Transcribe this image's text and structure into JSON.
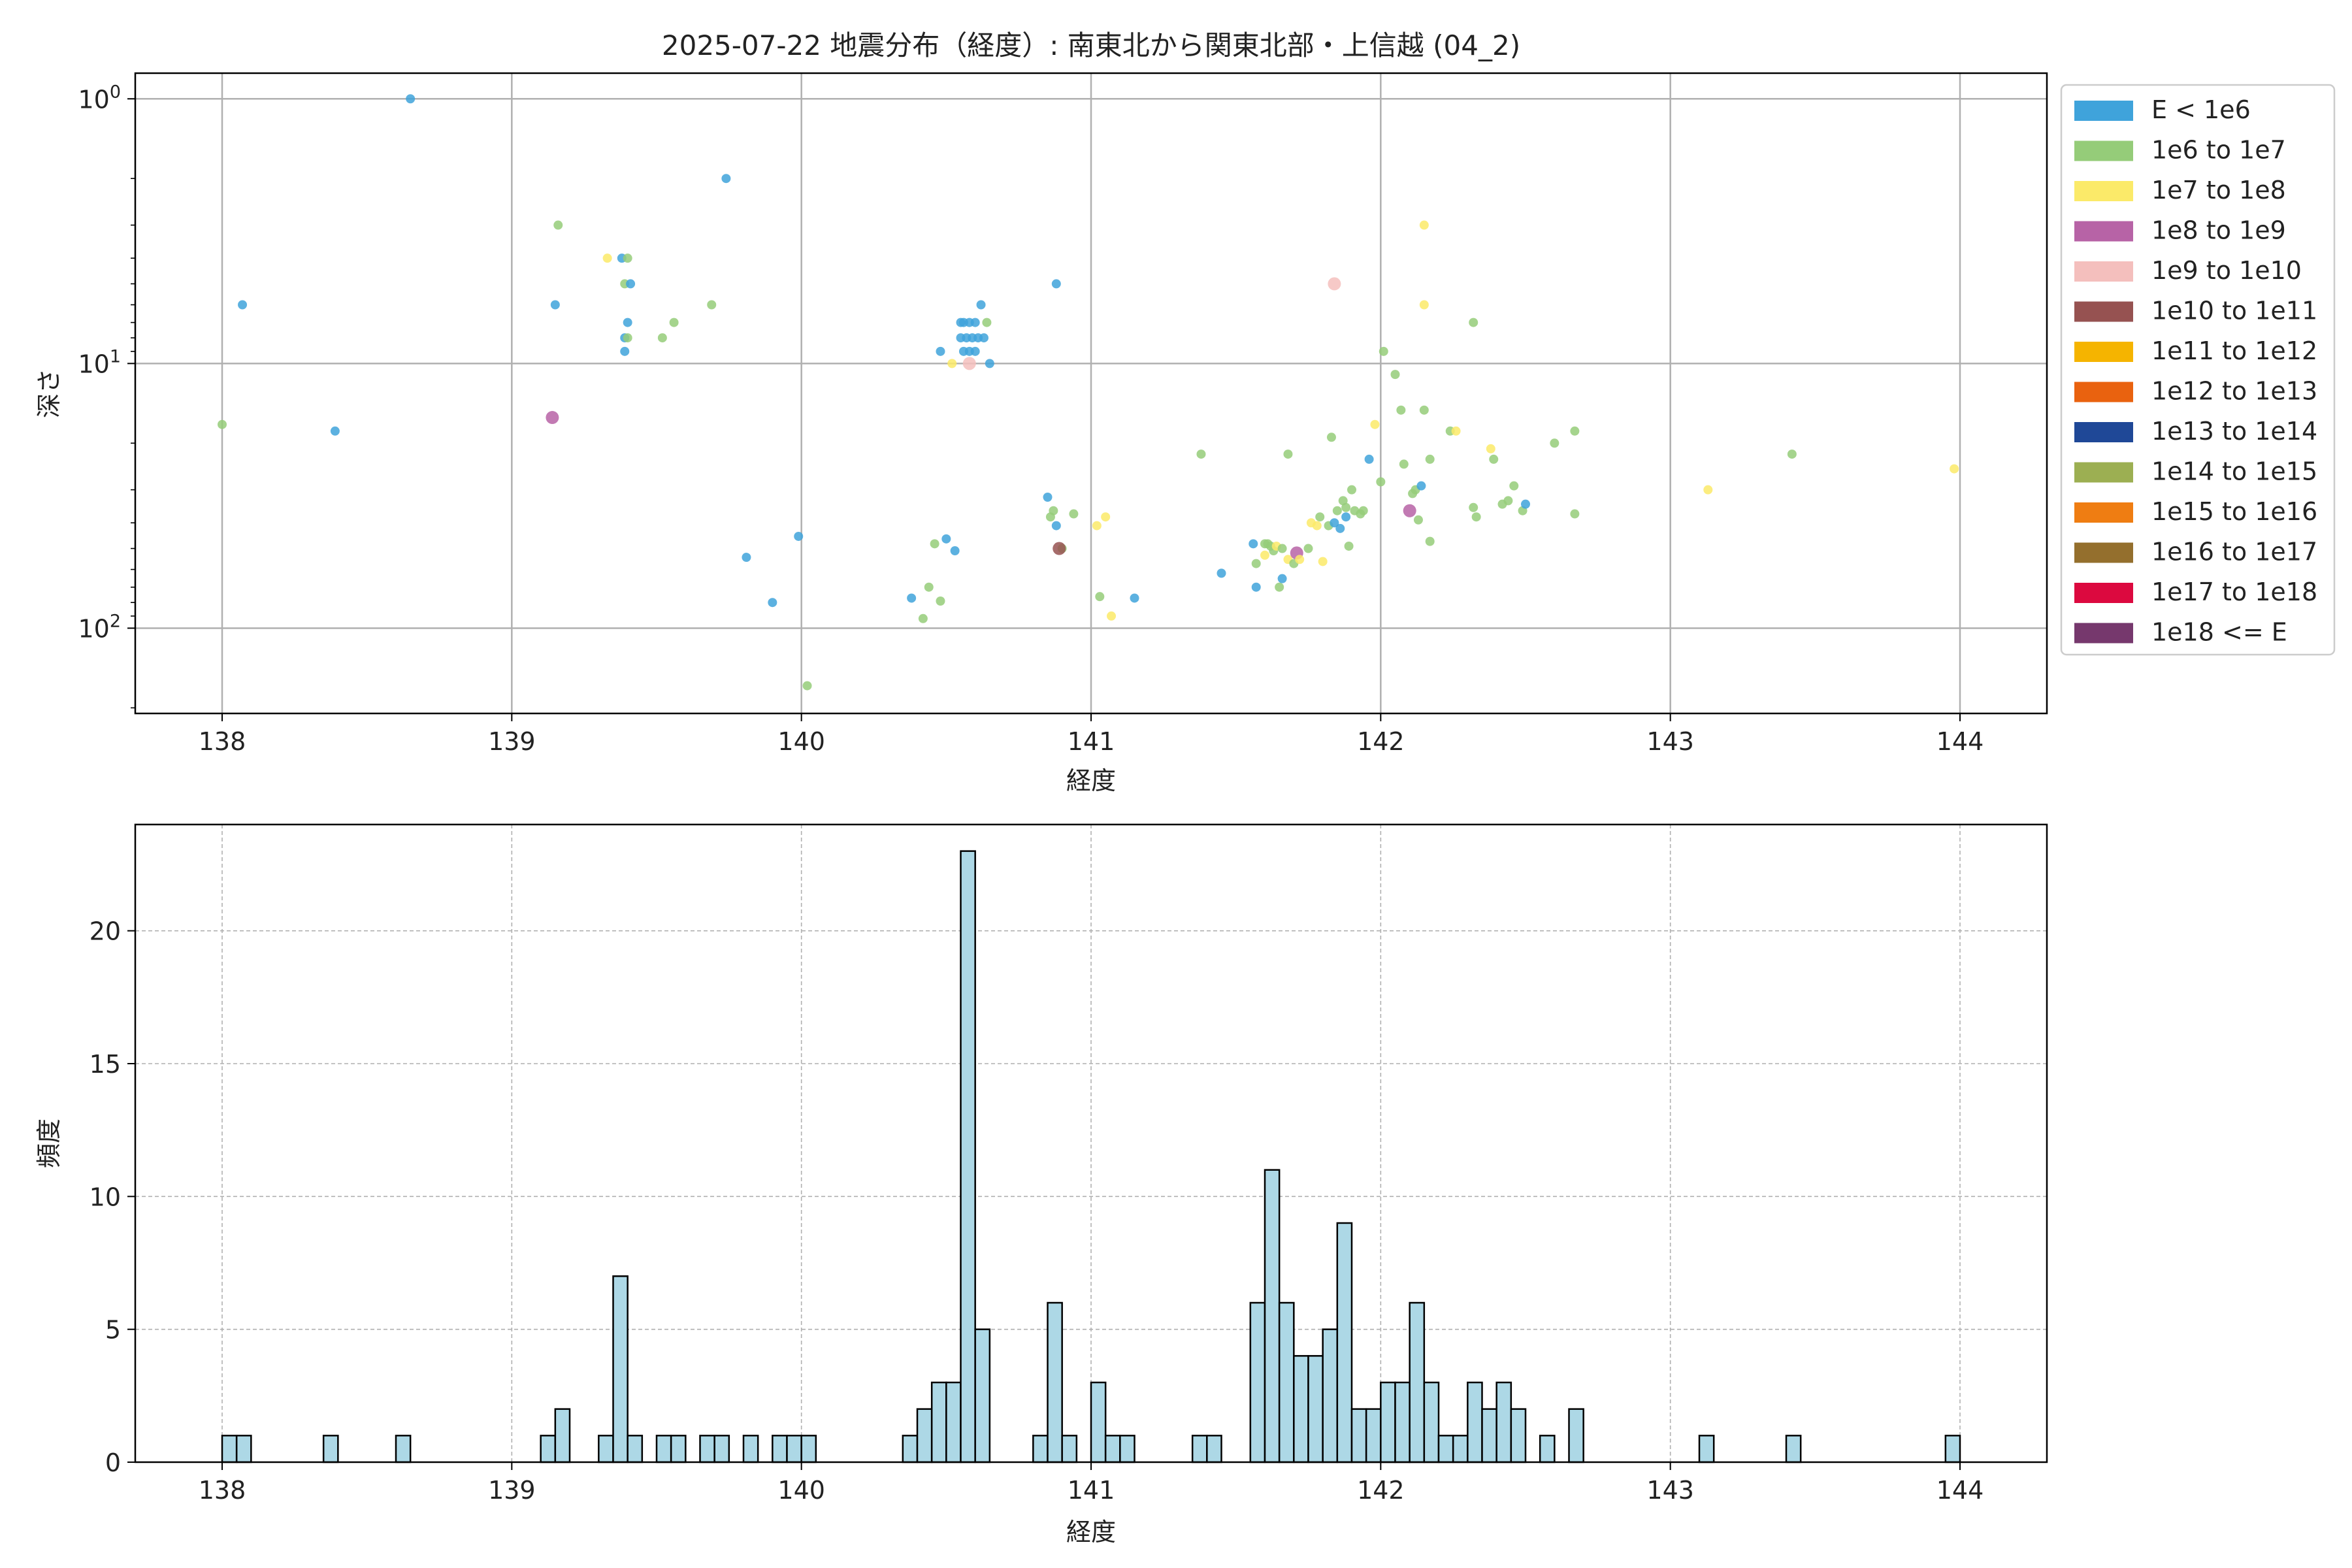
{
  "title": "2025-07-22 地震分布（経度）: 南東北から関東北部・上信越 (04_2)",
  "chart_data": [
    {
      "type": "scatter",
      "xlabel": "経度",
      "ylabel": "深さ",
      "xlim": [
        137.7,
        144.3
      ],
      "ylim": [
        210,
        0.8
      ],
      "yscale": "log",
      "y_inverted": true,
      "xticks": [
        "138",
        "139",
        "140",
        "141",
        "142",
        "143",
        "144"
      ],
      "xtick_values": [
        138,
        139,
        140,
        141,
        142,
        143,
        144
      ],
      "yticks": [
        {
          "base": "10",
          "exp": "0",
          "value": 1
        },
        {
          "base": "10",
          "exp": "1",
          "value": 10
        },
        {
          "base": "10",
          "exp": "2",
          "value": 100
        }
      ],
      "grid": true,
      "legend_position": "outside-right",
      "legend": [
        {
          "label": "E < 1e6",
          "color": "#3fa3db"
        },
        {
          "label": "1e6 to 1e7",
          "color": "#95cc79"
        },
        {
          "label": "1e7 to 1e8",
          "color": "#fbea69"
        },
        {
          "label": "1e8 to 1e9",
          "color": "#b763a6"
        },
        {
          "label": "1e9 to 1e10",
          "color": "#f4bfbd"
        },
        {
          "label": "1e10 to 1e11",
          "color": "#965251"
        },
        {
          "label": "1e11 to 1e12",
          "color": "#f5b400"
        },
        {
          "label": "1e12 to 1e13",
          "color": "#e9620f"
        },
        {
          "label": "1e13 to 1e14",
          "color": "#1f4897"
        },
        {
          "label": "1e14 to 1e15",
          "color": "#9caf52"
        },
        {
          "label": "1e15 to 1e16",
          "color": "#ef7d12"
        },
        {
          "label": "1e16 to 1e17",
          "color": "#946f2d"
        },
        {
          "label": "1e17 to 1e18",
          "color": "#dc093f"
        },
        {
          "label": "1e18 <= E",
          "color": "#76386d"
        }
      ],
      "points": [
        {
          "x": 138.65,
          "y": 1.0,
          "c": 0
        },
        {
          "x": 138.07,
          "y": 6.0,
          "c": 0
        },
        {
          "x": 138.0,
          "y": 17.0,
          "c": 1
        },
        {
          "x": 138.39,
          "y": 18.0,
          "c": 0
        },
        {
          "x": 139.16,
          "y": 3.0,
          "c": 1
        },
        {
          "x": 139.15,
          "y": 6.0,
          "c": 0
        },
        {
          "x": 139.33,
          "y": 4.0,
          "c": 2
        },
        {
          "x": 139.38,
          "y": 4.0,
          "c": 0
        },
        {
          "x": 139.4,
          "y": 4.0,
          "c": 1
        },
        {
          "x": 139.39,
          "y": 5.0,
          "c": 1
        },
        {
          "x": 139.41,
          "y": 5.0,
          "c": 0
        },
        {
          "x": 139.4,
          "y": 7.0,
          "c": 0
        },
        {
          "x": 139.39,
          "y": 8.0,
          "c": 0
        },
        {
          "x": 139.4,
          "y": 8.0,
          "c": 1
        },
        {
          "x": 139.39,
          "y": 9.0,
          "c": 0
        },
        {
          "x": 139.14,
          "y": 16.0,
          "c": 3
        },
        {
          "x": 139.52,
          "y": 8.0,
          "c": 1
        },
        {
          "x": 139.56,
          "y": 7.0,
          "c": 1
        },
        {
          "x": 139.69,
          "y": 6.0,
          "c": 1
        },
        {
          "x": 139.74,
          "y": 2.0,
          "c": 0
        },
        {
          "x": 139.81,
          "y": 54.0,
          "c": 0
        },
        {
          "x": 139.9,
          "y": 80.0,
          "c": 0
        },
        {
          "x": 139.99,
          "y": 45.0,
          "c": 0
        },
        {
          "x": 140.02,
          "y": 165.0,
          "c": 1
        },
        {
          "x": 140.38,
          "y": 77.0,
          "c": 0
        },
        {
          "x": 140.42,
          "y": 92.0,
          "c": 1
        },
        {
          "x": 140.44,
          "y": 70.0,
          "c": 1
        },
        {
          "x": 140.46,
          "y": 48.0,
          "c": 1
        },
        {
          "x": 140.48,
          "y": 79.0,
          "c": 1
        },
        {
          "x": 140.5,
          "y": 46.0,
          "c": 0
        },
        {
          "x": 140.53,
          "y": 51.0,
          "c": 0
        },
        {
          "x": 140.48,
          "y": 9.0,
          "c": 0
        },
        {
          "x": 140.52,
          "y": 10.0,
          "c": 2
        },
        {
          "x": 140.55,
          "y": 7.0,
          "c": 0
        },
        {
          "x": 140.56,
          "y": 7.0,
          "c": 0
        },
        {
          "x": 140.58,
          "y": 7.0,
          "c": 0
        },
        {
          "x": 140.6,
          "y": 7.0,
          "c": 0
        },
        {
          "x": 140.55,
          "y": 8.0,
          "c": 0
        },
        {
          "x": 140.57,
          "y": 8.0,
          "c": 0
        },
        {
          "x": 140.59,
          "y": 8.0,
          "c": 0
        },
        {
          "x": 140.61,
          "y": 8.0,
          "c": 0
        },
        {
          "x": 140.63,
          "y": 8.0,
          "c": 0
        },
        {
          "x": 140.56,
          "y": 9.0,
          "c": 0
        },
        {
          "x": 140.58,
          "y": 9.0,
          "c": 0
        },
        {
          "x": 140.6,
          "y": 9.0,
          "c": 0
        },
        {
          "x": 140.58,
          "y": 10.0,
          "c": 4
        },
        {
          "x": 140.62,
          "y": 6.0,
          "c": 0
        },
        {
          "x": 140.64,
          "y": 7.0,
          "c": 1
        },
        {
          "x": 140.65,
          "y": 10.0,
          "c": 0
        },
        {
          "x": 140.85,
          "y": 32.0,
          "c": 0
        },
        {
          "x": 140.86,
          "y": 38.0,
          "c": 1
        },
        {
          "x": 140.87,
          "y": 36.0,
          "c": 1
        },
        {
          "x": 140.88,
          "y": 41.0,
          "c": 0
        },
        {
          "x": 140.9,
          "y": 50.0,
          "c": 1
        },
        {
          "x": 140.89,
          "y": 50.0,
          "c": 5
        },
        {
          "x": 140.94,
          "y": 37.0,
          "c": 1
        },
        {
          "x": 140.88,
          "y": 5.0,
          "c": 0
        },
        {
          "x": 141.02,
          "y": 41.0,
          "c": 2
        },
        {
          "x": 141.05,
          "y": 38.0,
          "c": 2
        },
        {
          "x": 141.03,
          "y": 76.0,
          "c": 1
        },
        {
          "x": 141.07,
          "y": 90.0,
          "c": 2
        },
        {
          "x": 141.15,
          "y": 77.0,
          "c": 0
        },
        {
          "x": 141.38,
          "y": 22.0,
          "c": 1
        },
        {
          "x": 141.45,
          "y": 62.0,
          "c": 0
        },
        {
          "x": 141.56,
          "y": 48.0,
          "c": 0
        },
        {
          "x": 141.57,
          "y": 57.0,
          "c": 1
        },
        {
          "x": 141.57,
          "y": 70.0,
          "c": 0
        },
        {
          "x": 141.6,
          "y": 48.0,
          "c": 1
        },
        {
          "x": 141.61,
          "y": 48.0,
          "c": 1
        },
        {
          "x": 141.62,
          "y": 49.0,
          "c": 1
        },
        {
          "x": 141.63,
          "y": 51.0,
          "c": 1
        },
        {
          "x": 141.6,
          "y": 53.0,
          "c": 2
        },
        {
          "x": 141.64,
          "y": 49.0,
          "c": 2
        },
        {
          "x": 141.66,
          "y": 50.0,
          "c": 1
        },
        {
          "x": 141.65,
          "y": 70.0,
          "c": 1
        },
        {
          "x": 141.66,
          "y": 65.0,
          "c": 0
        },
        {
          "x": 141.68,
          "y": 22.0,
          "c": 1
        },
        {
          "x": 141.68,
          "y": 55.0,
          "c": 2
        },
        {
          "x": 141.7,
          "y": 57.0,
          "c": 1
        },
        {
          "x": 141.71,
          "y": 52.0,
          "c": 3
        },
        {
          "x": 141.72,
          "y": 55.0,
          "c": 2
        },
        {
          "x": 141.75,
          "y": 50.0,
          "c": 1
        },
        {
          "x": 141.76,
          "y": 40.0,
          "c": 2
        },
        {
          "x": 141.78,
          "y": 41.0,
          "c": 2
        },
        {
          "x": 141.79,
          "y": 38.0,
          "c": 1
        },
        {
          "x": 141.8,
          "y": 56.0,
          "c": 2
        },
        {
          "x": 141.82,
          "y": 41.0,
          "c": 1
        },
        {
          "x": 141.83,
          "y": 19.0,
          "c": 1
        },
        {
          "x": 141.84,
          "y": 40.0,
          "c": 0
        },
        {
          "x": 141.84,
          "y": 5.0,
          "c": 4
        },
        {
          "x": 141.85,
          "y": 36.0,
          "c": 1
        },
        {
          "x": 141.86,
          "y": 42.0,
          "c": 0
        },
        {
          "x": 141.87,
          "y": 33.0,
          "c": 1
        },
        {
          "x": 141.88,
          "y": 38.0,
          "c": 0
        },
        {
          "x": 141.88,
          "y": 35.0,
          "c": 1
        },
        {
          "x": 141.89,
          "y": 49.0,
          "c": 1
        },
        {
          "x": 141.9,
          "y": 30.0,
          "c": 1
        },
        {
          "x": 141.91,
          "y": 36.0,
          "c": 1
        },
        {
          "x": 141.93,
          "y": 37.0,
          "c": 1
        },
        {
          "x": 141.94,
          "y": 36.0,
          "c": 1
        },
        {
          "x": 141.96,
          "y": 23.0,
          "c": 0
        },
        {
          "x": 141.98,
          "y": 17.0,
          "c": 2
        },
        {
          "x": 142.0,
          "y": 28.0,
          "c": 1
        },
        {
          "x": 142.01,
          "y": 9.0,
          "c": 1
        },
        {
          "x": 142.05,
          "y": 11.0,
          "c": 1
        },
        {
          "x": 142.07,
          "y": 15.0,
          "c": 1
        },
        {
          "x": 142.08,
          "y": 24.0,
          "c": 1
        },
        {
          "x": 142.1,
          "y": 36.0,
          "c": 3
        },
        {
          "x": 142.11,
          "y": 31.0,
          "c": 1
        },
        {
          "x": 142.12,
          "y": 30.0,
          "c": 1
        },
        {
          "x": 142.13,
          "y": 39.0,
          "c": 1
        },
        {
          "x": 142.14,
          "y": 29.0,
          "c": 0
        },
        {
          "x": 142.15,
          "y": 3.0,
          "c": 2
        },
        {
          "x": 142.15,
          "y": 6.0,
          "c": 2
        },
        {
          "x": 142.15,
          "y": 15.0,
          "c": 1
        },
        {
          "x": 142.17,
          "y": 23.0,
          "c": 1
        },
        {
          "x": 142.17,
          "y": 47.0,
          "c": 1
        },
        {
          "x": 142.24,
          "y": 18.0,
          "c": 1
        },
        {
          "x": 142.26,
          "y": 18.0,
          "c": 2
        },
        {
          "x": 142.32,
          "y": 7.0,
          "c": 1
        },
        {
          "x": 142.32,
          "y": 35.0,
          "c": 1
        },
        {
          "x": 142.33,
          "y": 38.0,
          "c": 1
        },
        {
          "x": 142.38,
          "y": 21.0,
          "c": 2
        },
        {
          "x": 142.39,
          "y": 23.0,
          "c": 1
        },
        {
          "x": 142.42,
          "y": 34.0,
          "c": 1
        },
        {
          "x": 142.44,
          "y": 33.0,
          "c": 1
        },
        {
          "x": 142.46,
          "y": 29.0,
          "c": 1
        },
        {
          "x": 142.49,
          "y": 36.0,
          "c": 1
        },
        {
          "x": 142.5,
          "y": 34.0,
          "c": 0
        },
        {
          "x": 142.6,
          "y": 20.0,
          "c": 1
        },
        {
          "x": 142.67,
          "y": 18.0,
          "c": 1
        },
        {
          "x": 142.67,
          "y": 37.0,
          "c": 1
        },
        {
          "x": 143.13,
          "y": 30.0,
          "c": 2
        },
        {
          "x": 143.42,
          "y": 22.0,
          "c": 1
        },
        {
          "x": 143.98,
          "y": 25.0,
          "c": 2
        }
      ]
    },
    {
      "type": "bar",
      "xlabel": "経度",
      "ylabel": "頻度",
      "xlim": [
        137.7,
        144.3
      ],
      "ylim": [
        0,
        24
      ],
      "bar_color": "#add8e6",
      "grid": true,
      "xticks": [
        "138",
        "139",
        "140",
        "141",
        "142",
        "143",
        "144"
      ],
      "xtick_values": [
        138,
        139,
        140,
        141,
        142,
        143,
        144
      ],
      "yticks": [
        "0",
        "5",
        "10",
        "15",
        "20"
      ],
      "ytick_values": [
        0,
        5,
        10,
        15,
        20
      ],
      "bin_width": 0.05,
      "bins": [
        {
          "x": 138.0,
          "count": 1
        },
        {
          "x": 138.05,
          "count": 1
        },
        {
          "x": 138.35,
          "count": 1
        },
        {
          "x": 138.6,
          "count": 1
        },
        {
          "x": 139.1,
          "count": 1
        },
        {
          "x": 139.15,
          "count": 2
        },
        {
          "x": 139.3,
          "count": 1
        },
        {
          "x": 139.35,
          "count": 7
        },
        {
          "x": 139.4,
          "count": 1
        },
        {
          "x": 139.5,
          "count": 1
        },
        {
          "x": 139.55,
          "count": 1
        },
        {
          "x": 139.65,
          "count": 1
        },
        {
          "x": 139.7,
          "count": 1
        },
        {
          "x": 139.8,
          "count": 1
        },
        {
          "x": 139.9,
          "count": 1
        },
        {
          "x": 139.95,
          "count": 1
        },
        {
          "x": 140.0,
          "count": 1
        },
        {
          "x": 140.35,
          "count": 1
        },
        {
          "x": 140.4,
          "count": 2
        },
        {
          "x": 140.45,
          "count": 3
        },
        {
          "x": 140.5,
          "count": 3
        },
        {
          "x": 140.55,
          "count": 23
        },
        {
          "x": 140.6,
          "count": 5
        },
        {
          "x": 140.8,
          "count": 1
        },
        {
          "x": 140.85,
          "count": 6
        },
        {
          "x": 140.9,
          "count": 1
        },
        {
          "x": 141.0,
          "count": 3
        },
        {
          "x": 141.05,
          "count": 1
        },
        {
          "x": 141.1,
          "count": 1
        },
        {
          "x": 141.35,
          "count": 1
        },
        {
          "x": 141.4,
          "count": 1
        },
        {
          "x": 141.55,
          "count": 6
        },
        {
          "x": 141.6,
          "count": 11
        },
        {
          "x": 141.65,
          "count": 6
        },
        {
          "x": 141.7,
          "count": 4
        },
        {
          "x": 141.75,
          "count": 4
        },
        {
          "x": 141.8,
          "count": 5
        },
        {
          "x": 141.85,
          "count": 9
        },
        {
          "x": 141.9,
          "count": 2
        },
        {
          "x": 141.95,
          "count": 2
        },
        {
          "x": 142.0,
          "count": 3
        },
        {
          "x": 142.05,
          "count": 3
        },
        {
          "x": 142.1,
          "count": 6
        },
        {
          "x": 142.15,
          "count": 3
        },
        {
          "x": 142.2,
          "count": 1
        },
        {
          "x": 142.25,
          "count": 1
        },
        {
          "x": 142.3,
          "count": 3
        },
        {
          "x": 142.35,
          "count": 2
        },
        {
          "x": 142.4,
          "count": 3
        },
        {
          "x": 142.45,
          "count": 2
        },
        {
          "x": 142.55,
          "count": 1
        },
        {
          "x": 142.65,
          "count": 2
        },
        {
          "x": 143.1,
          "count": 1
        },
        {
          "x": 143.4,
          "count": 1
        },
        {
          "x": 143.95,
          "count": 1
        }
      ]
    }
  ]
}
